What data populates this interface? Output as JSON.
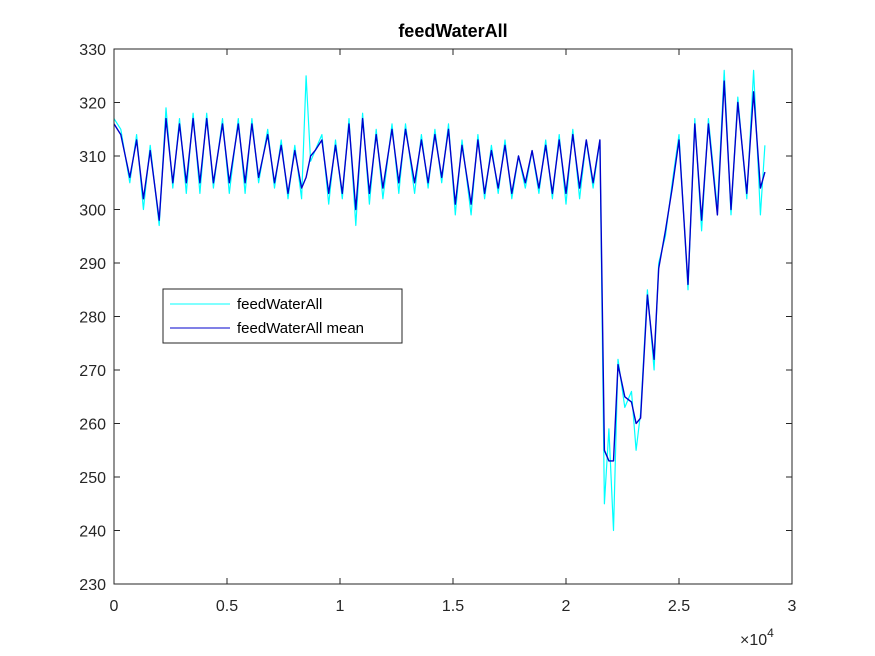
{
  "chart_data": {
    "type": "line",
    "title": "feedWaterAll",
    "xlabel": "",
    "ylabel": "",
    "xlim": [
      0,
      30000
    ],
    "ylim": [
      230,
      330
    ],
    "x_exponent_label": "×10",
    "x_exponent_power": "4",
    "x_ticks": [
      0,
      5000,
      10000,
      15000,
      20000,
      25000,
      30000
    ],
    "x_tick_labels": [
      "0",
      "0.5",
      "1",
      "1.5",
      "2",
      "2.5",
      "3"
    ],
    "y_ticks": [
      230,
      240,
      250,
      260,
      270,
      280,
      290,
      300,
      310,
      320,
      330
    ],
    "y_tick_labels": [
      "230",
      "240",
      "250",
      "260",
      "270",
      "280",
      "290",
      "300",
      "310",
      "320",
      "330"
    ],
    "grid": false,
    "legend_position": "center-left",
    "series": [
      {
        "name": "feedWaterAll",
        "color": "#00ffff",
        "x": [
          0,
          300,
          700,
          1000,
          1300,
          1600,
          2000,
          2300,
          2600,
          2900,
          3200,
          3500,
          3800,
          4100,
          4400,
          4800,
          5100,
          5500,
          5800,
          6100,
          6400,
          6800,
          7100,
          7400,
          7700,
          8000,
          8300,
          8500,
          8700,
          8900,
          9200,
          9500,
          9800,
          10100,
          10400,
          10700,
          11000,
          11300,
          11600,
          11900,
          12300,
          12600,
          12900,
          13300,
          13600,
          13900,
          14200,
          14500,
          14800,
          15100,
          15400,
          15800,
          16100,
          16400,
          16700,
          17000,
          17300,
          17600,
          17900,
          18200,
          18500,
          18800,
          19100,
          19400,
          19700,
          20000,
          20300,
          20600,
          20900,
          21200,
          21500,
          21700,
          21900,
          22100,
          22300,
          22600,
          22900,
          23100,
          23300,
          23600,
          23900,
          24100,
          24400,
          24700,
          25000,
          25400,
          25700,
          26000,
          26300,
          26700,
          27000,
          27300,
          27600,
          28000,
          28300,
          28600,
          28800
        ],
        "values": [
          317,
          315,
          305,
          314,
          300,
          312,
          297,
          319,
          304,
          317,
          303,
          318,
          303,
          318,
          304,
          317,
          303,
          317,
          303,
          317,
          305,
          315,
          304,
          313,
          302,
          312,
          302,
          325,
          309,
          311,
          314,
          301,
          313,
          302,
          317,
          297,
          318,
          301,
          315,
          302,
          316,
          303,
          316,
          303,
          314,
          304,
          315,
          305,
          316,
          299,
          313,
          299,
          314,
          302,
          312,
          303,
          313,
          302,
          310,
          304,
          311,
          303,
          313,
          302,
          314,
          301,
          315,
          302,
          313,
          304,
          313,
          245,
          259,
          240,
          272,
          263,
          266,
          255,
          262,
          285,
          270,
          290,
          295,
          305,
          314,
          285,
          317,
          296,
          317,
          300,
          326,
          299,
          321,
          302,
          326,
          299,
          312
        ]
      },
      {
        "name": "feedWaterAll mean",
        "color": "#0000cc",
        "x": [
          0,
          300,
          700,
          1000,
          1300,
          1600,
          2000,
          2300,
          2600,
          2900,
          3200,
          3500,
          3800,
          4100,
          4400,
          4800,
          5100,
          5500,
          5800,
          6100,
          6400,
          6800,
          7100,
          7400,
          7700,
          8000,
          8300,
          8500,
          8700,
          8900,
          9200,
          9500,
          9800,
          10100,
          10400,
          10700,
          11000,
          11300,
          11600,
          11900,
          12300,
          12600,
          12900,
          13300,
          13600,
          13900,
          14200,
          14500,
          14800,
          15100,
          15400,
          15800,
          16100,
          16400,
          16700,
          17000,
          17300,
          17600,
          17900,
          18200,
          18500,
          18800,
          19100,
          19400,
          19700,
          20000,
          20300,
          20600,
          20900,
          21200,
          21500,
          21700,
          21900,
          22100,
          22300,
          22600,
          22900,
          23100,
          23300,
          23600,
          23900,
          24100,
          24400,
          24700,
          25000,
          25400,
          25700,
          26000,
          26300,
          26700,
          27000,
          27300,
          27600,
          28000,
          28300,
          28600,
          28800
        ],
        "values": [
          316,
          314,
          306,
          313,
          302,
          311,
          298,
          317,
          305,
          316,
          305,
          317,
          305,
          317,
          305,
          316,
          305,
          316,
          305,
          316,
          306,
          314,
          305,
          312,
          303,
          311,
          304,
          306,
          310,
          311,
          313,
          303,
          312,
          303,
          316,
          300,
          317,
          303,
          314,
          304,
          315,
          305,
          315,
          305,
          313,
          305,
          314,
          306,
          315,
          301,
          312,
          301,
          313,
          303,
          311,
          304,
          312,
          303,
          310,
          305,
          311,
          304,
          312,
          303,
          313,
          303,
          314,
          304,
          313,
          305,
          313,
          255,
          253,
          253,
          271,
          265,
          264,
          260,
          261,
          284,
          272,
          289,
          296,
          304,
          313,
          286,
          316,
          298,
          316,
          299,
          324,
          300,
          320,
          303,
          322,
          304,
          307
        ]
      }
    ]
  }
}
